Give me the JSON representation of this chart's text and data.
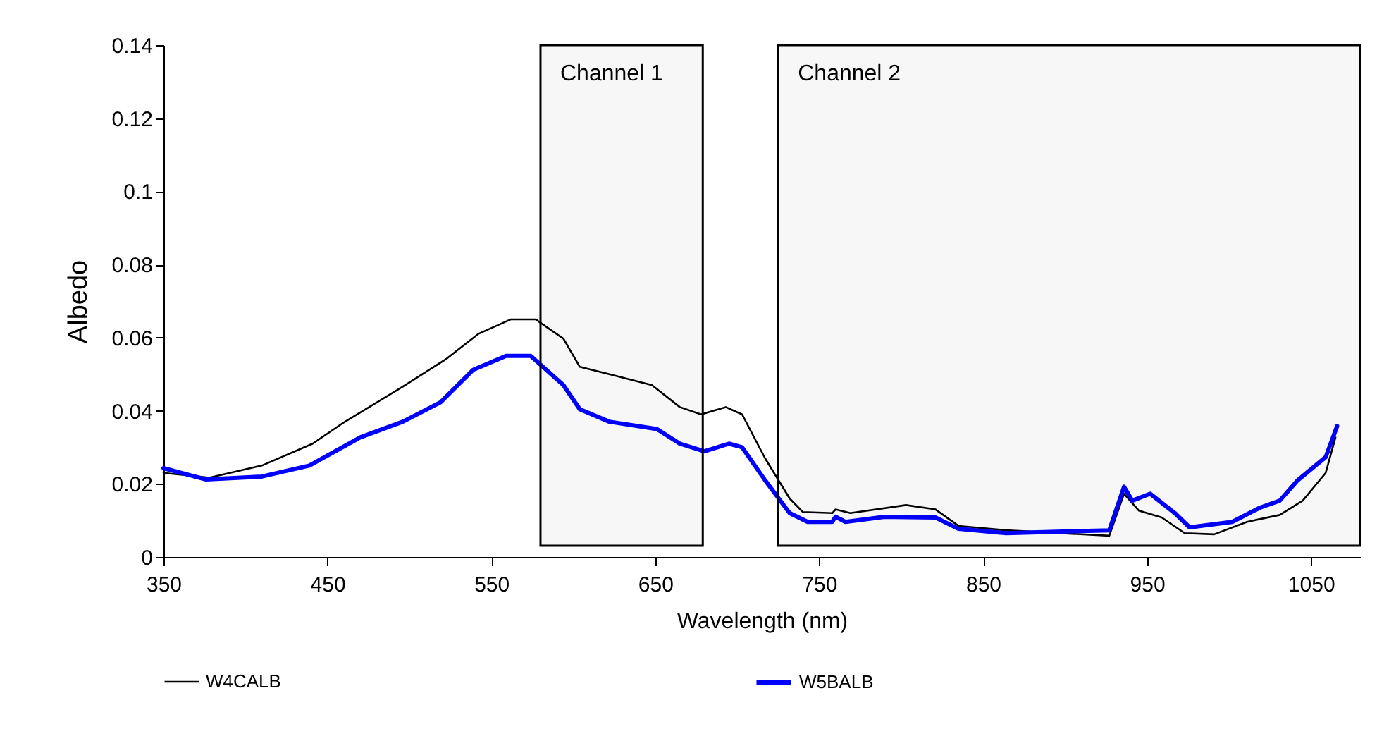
{
  "chart_data": {
    "type": "line",
    "xlabel": "Wavelength (nm)",
    "ylabel": "Albedo",
    "xlim": [
      350,
      1080
    ],
    "xticks": [
      350,
      450,
      550,
      650,
      750,
      850,
      950,
      1050
    ],
    "ylim": [
      0,
      0.14
    ],
    "yticks": [
      0,
      0.02,
      0.04,
      0.06,
      0.08,
      0.1,
      0.12,
      0.14
    ],
    "grid": false,
    "legend": "bottom",
    "marker": "none",
    "line_style": "solid",
    "bands": [
      {
        "axis": "x",
        "from": 580,
        "to": 679,
        "label": "Channel 1",
        "color": "#000000"
      },
      {
        "axis": "x",
        "from": 725,
        "to": 1080,
        "label": "Channel 2",
        "color": "#000000"
      }
    ],
    "series": [
      {
        "name": "W4CALB",
        "color": "#000000",
        "x": [
          350,
          378,
          410,
          441,
          459,
          496,
          522,
          542,
          562,
          577,
          594,
          604,
          622,
          648,
          665,
          678,
          693,
          703,
          717,
          732,
          740,
          758,
          760,
          769,
          803,
          821,
          835,
          864,
          927,
          936,
          945,
          959,
          973,
          991,
          1011,
          1031,
          1045,
          1059,
          1065
        ],
        "values": [
          0.023,
          0.0217,
          0.025,
          0.031,
          0.0365,
          0.0466,
          0.054,
          0.061,
          0.065,
          0.065,
          0.0597,
          0.052,
          0.05,
          0.047,
          0.041,
          0.039,
          0.041,
          0.039,
          0.027,
          0.016,
          0.0123,
          0.012,
          0.013,
          0.012,
          0.0142,
          0.013,
          0.0085,
          0.0073,
          0.0058,
          0.0173,
          0.0127,
          0.0108,
          0.0065,
          0.0062,
          0.0096,
          0.0115,
          0.0154,
          0.023,
          0.0327
        ]
      },
      {
        "name": "W5BALB",
        "color": "#0000ff",
        "x": [
          350,
          376,
          410,
          439,
          470,
          496,
          519,
          539,
          559,
          574,
          594,
          604,
          622,
          651,
          665,
          680,
          695,
          703,
          717,
          732,
          743,
          758,
          760,
          766,
          790,
          821,
          835,
          864,
          927,
          936,
          941,
          952,
          967,
          976,
          1002,
          1019,
          1031,
          1042,
          1059,
          1066
        ],
        "values": [
          0.0243,
          0.0212,
          0.022,
          0.025,
          0.0327,
          0.037,
          0.0423,
          0.0512,
          0.055,
          0.055,
          0.047,
          0.0404,
          0.037,
          0.035,
          0.031,
          0.0289,
          0.031,
          0.03,
          0.021,
          0.012,
          0.0096,
          0.0096,
          0.011,
          0.0096,
          0.011,
          0.0108,
          0.0077,
          0.0065,
          0.0073,
          0.0192,
          0.0154,
          0.0173,
          0.012,
          0.0081,
          0.0096,
          0.0135,
          0.0154,
          0.021,
          0.0273,
          0.0358
        ]
      }
    ]
  }
}
